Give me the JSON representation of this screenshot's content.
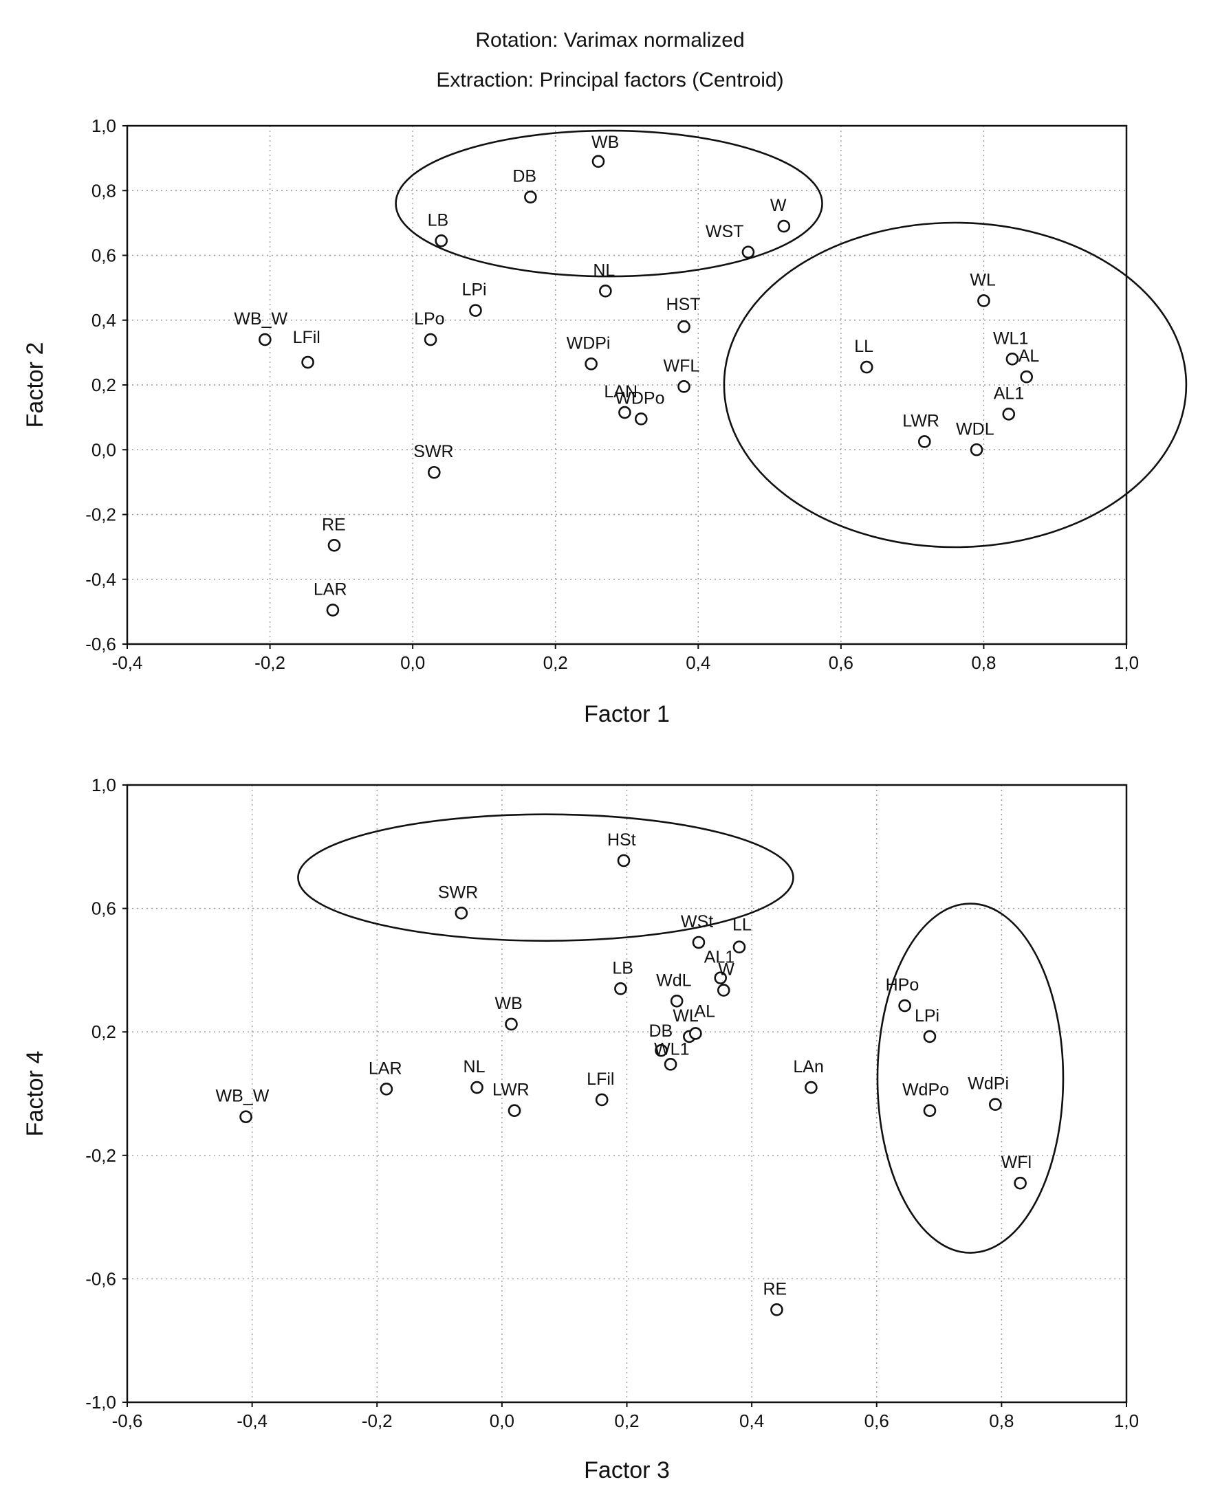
{
  "header": {
    "rotation": "Rotation: Varimax normalized",
    "extraction": "Extraction: Principal factors (Centroid)"
  },
  "chart_data": [
    {
      "type": "scatter",
      "xlabel": "Factor 1",
      "ylabel": "Factor 2",
      "xlim": [
        -0.4,
        1.0
      ],
      "ylim": [
        -0.6,
        1.0
      ],
      "xticks": [
        "-0,4",
        "-0,2",
        "0,0",
        "0,2",
        "0,4",
        "0,6",
        "0,8",
        "1,0"
      ],
      "yticks": [
        "-0,6",
        "-0,4",
        "-0,2",
        "0,0",
        "0,2",
        "0,4",
        "0,6",
        "0,8",
        "1,0"
      ],
      "grid": true,
      "points": [
        {
          "label": "WB",
          "x": 0.26,
          "y": 0.89
        },
        {
          "label": "DB",
          "x": 0.165,
          "y": 0.78
        },
        {
          "label": "W",
          "x": 0.52,
          "y": 0.69
        },
        {
          "label": "WST",
          "x": 0.47,
          "y": 0.61
        },
        {
          "label": "LB",
          "x": 0.04,
          "y": 0.645
        },
        {
          "label": "NL",
          "x": 0.27,
          "y": 0.49
        },
        {
          "label": "LPi",
          "x": 0.088,
          "y": 0.43
        },
        {
          "label": "HST",
          "x": 0.38,
          "y": 0.38
        },
        {
          "label": "LPo",
          "x": 0.025,
          "y": 0.34
        },
        {
          "label": "WB_W",
          "x": -0.207,
          "y": 0.34
        },
        {
          "label": "LFil",
          "x": -0.147,
          "y": 0.27
        },
        {
          "label": "WDPi",
          "x": 0.25,
          "y": 0.265
        },
        {
          "label": "WFL",
          "x": 0.38,
          "y": 0.195
        },
        {
          "label": "LAN",
          "x": 0.297,
          "y": 0.115
        },
        {
          "label": "WDPo",
          "x": 0.32,
          "y": 0.095
        },
        {
          "label": "SWR",
          "x": 0.03,
          "y": -0.07
        },
        {
          "label": "RE",
          "x": -0.11,
          "y": -0.295
        },
        {
          "label": "LAR",
          "x": -0.112,
          "y": -0.495
        },
        {
          "label": "WL",
          "x": 0.8,
          "y": 0.46
        },
        {
          "label": "LL",
          "x": 0.636,
          "y": 0.255
        },
        {
          "label": "WL1",
          "x": 0.84,
          "y": 0.28
        },
        {
          "label": "AL",
          "x": 0.86,
          "y": 0.225
        },
        {
          "label": "AL1",
          "x": 0.835,
          "y": 0.11
        },
        {
          "label": "LWR",
          "x": 0.717,
          "y": 0.025
        },
        {
          "label": "WDL",
          "x": 0.79,
          "y": 0.0
        }
      ],
      "annotations": [
        "ellipse around WB, DB, W, WST, LB",
        "ellipse around WL, LL, WL1, AL, AL1, LWR, WDL"
      ]
    },
    {
      "type": "scatter",
      "xlabel": "Factor 3",
      "ylabel": "Factor 4",
      "xlim": [
        -0.6,
        1.0
      ],
      "ylim": [
        -1.0,
        1.0
      ],
      "xticks": [
        "-0,6",
        "-0,4",
        "-0,2",
        "0,0",
        "0,2",
        "0,4",
        "0,6",
        "0,8",
        "1,0"
      ],
      "yticks": [
        "-1,0",
        "-0,6",
        "-0,2",
        "0,2",
        "0,6",
        "1,0"
      ],
      "grid": true,
      "points": [
        {
          "label": "HSt",
          "x": 0.195,
          "y": 0.755
        },
        {
          "label": "SWR",
          "x": -0.065,
          "y": 0.585
        },
        {
          "label": "WSt",
          "x": 0.315,
          "y": 0.49
        },
        {
          "label": "LL",
          "x": 0.38,
          "y": 0.475
        },
        {
          "label": "AL1",
          "x": 0.35,
          "y": 0.375
        },
        {
          "label": "W",
          "x": 0.355,
          "y": 0.335
        },
        {
          "label": "LB",
          "x": 0.19,
          "y": 0.34
        },
        {
          "label": "WdL",
          "x": 0.28,
          "y": 0.3
        },
        {
          "label": "WB",
          "x": 0.015,
          "y": 0.225
        },
        {
          "label": "WL",
          "x": 0.3,
          "y": 0.185
        },
        {
          "label": "AL",
          "x": 0.31,
          "y": 0.195
        },
        {
          "label": "DB",
          "x": 0.255,
          "y": 0.14
        },
        {
          "label": "WL1",
          "x": 0.27,
          "y": 0.095
        },
        {
          "label": "LAR",
          "x": -0.185,
          "y": 0.015
        },
        {
          "label": "NL",
          "x": -0.04,
          "y": 0.02
        },
        {
          "label": "LWR",
          "x": 0.02,
          "y": -0.055
        },
        {
          "label": "LFil",
          "x": 0.16,
          "y": -0.02
        },
        {
          "label": "LAn",
          "x": 0.495,
          "y": 0.02
        },
        {
          "label": "WB_W",
          "x": -0.41,
          "y": -0.075
        },
        {
          "label": "HPo",
          "x": 0.645,
          "y": 0.285
        },
        {
          "label": "LPi",
          "x": 0.685,
          "y": 0.185
        },
        {
          "label": "WdPo",
          "x": 0.685,
          "y": -0.055
        },
        {
          "label": "WdPi",
          "x": 0.79,
          "y": -0.035
        },
        {
          "label": "WFl",
          "x": 0.83,
          "y": -0.29
        },
        {
          "label": "RE",
          "x": 0.44,
          "y": -0.7
        }
      ],
      "annotations": [
        "ellipse around HSt, SWR",
        "ellipse around HPo, LPi, WdPo, WdPi, WFl"
      ]
    }
  ]
}
